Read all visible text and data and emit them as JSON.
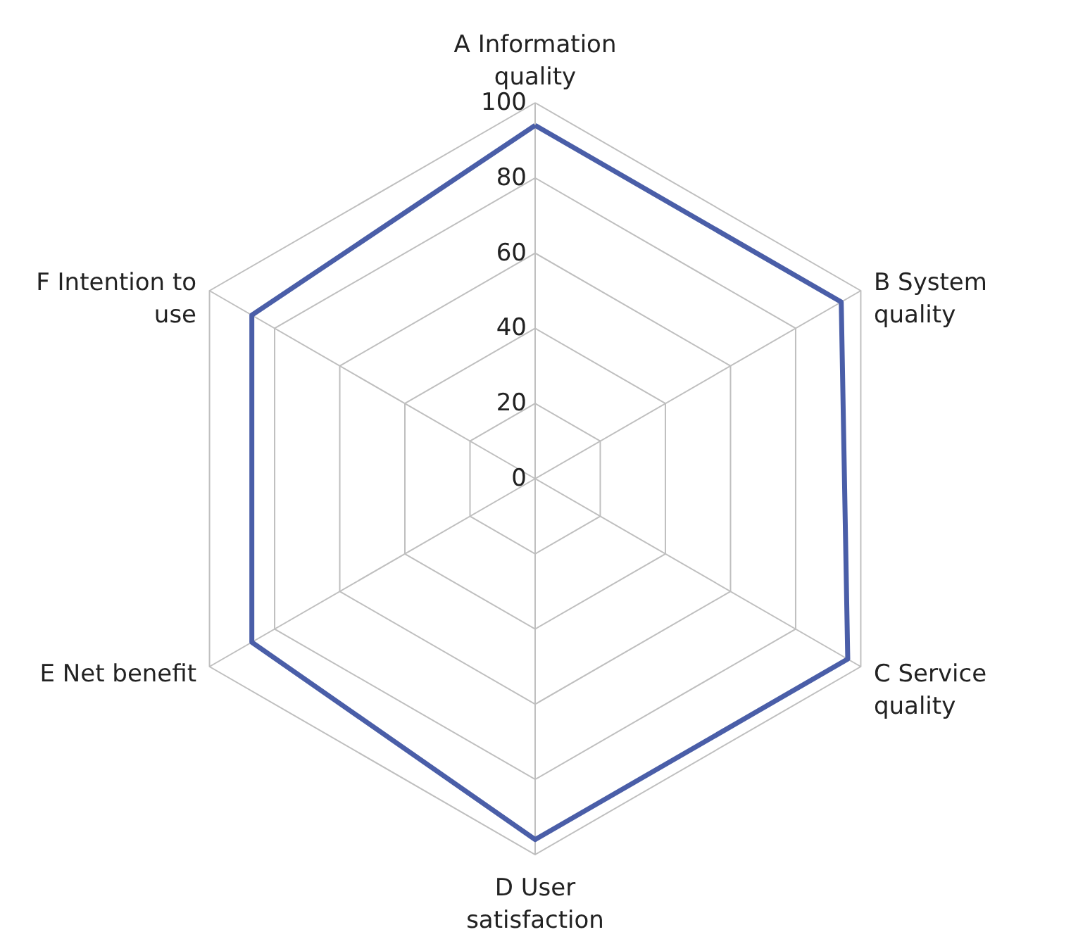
{
  "chart_data": {
    "type": "radar",
    "categories": [
      "A Information quality",
      "B System quality",
      "C Service quality",
      "D User satisfaction",
      "E Net benefit",
      "F Intention to use"
    ],
    "series": [
      {
        "color": "#4a5ea8",
        "values": [
          94,
          94,
          96,
          96,
          87,
          87
        ]
      }
    ],
    "ylim": [
      0,
      100
    ],
    "yticks": [
      0,
      20,
      40,
      60,
      80,
      100
    ],
    "grid": true
  }
}
